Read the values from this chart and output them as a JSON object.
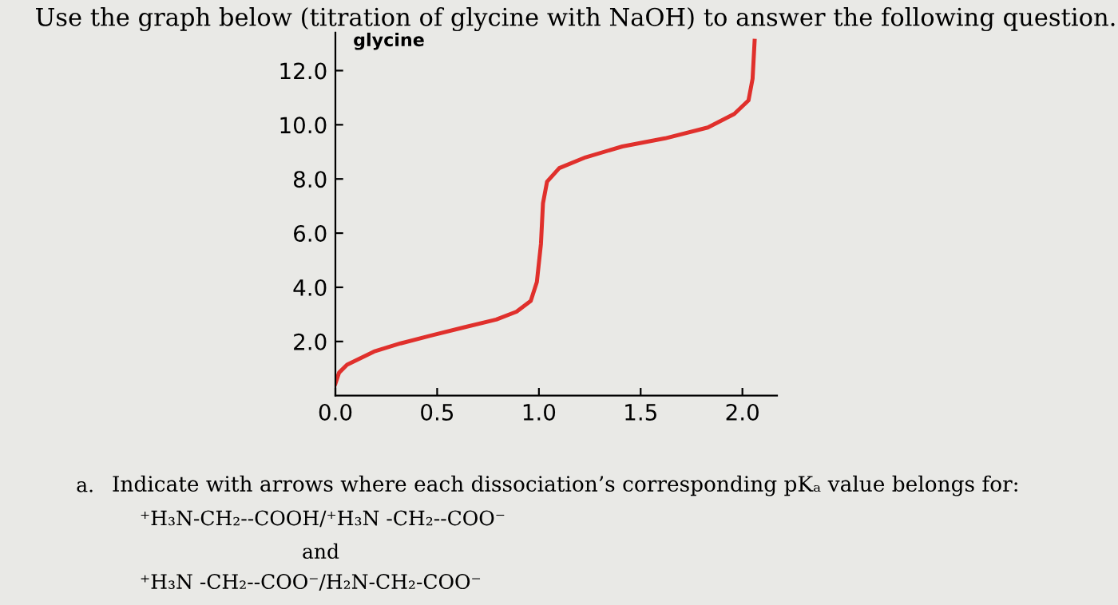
{
  "chart_data": {
    "type": "line",
    "title": "Use the graph below (titration of glycine with NaOH) to answer the following question.",
    "subtitle": "glycine",
    "x": [
      0,
      0.018,
      0.057,
      0.19,
      0.32,
      0.47,
      0.63,
      0.79,
      0.89,
      0.96,
      0.99,
      1.01,
      1.02,
      1.04,
      1.1,
      1.23,
      1.41,
      1.62,
      1.83,
      1.96,
      2.03,
      2.05,
      2.06
    ],
    "series": [
      {
        "color": "#e0302c",
        "values": [
          0.45,
          0.85,
          1.14,
          1.63,
          1.93,
          2.22,
          2.52,
          2.81,
          3.1,
          3.5,
          4.2,
          5.6,
          7.1,
          7.9,
          8.4,
          8.8,
          9.2,
          9.5,
          9.9,
          10.4,
          10.9,
          11.7,
          13.1
        ]
      }
    ],
    "xlim": [
      0,
      2.17
    ],
    "ylim": [
      0,
      13.4
    ],
    "xticks": [
      {
        "value": 0,
        "label": "0.0"
      },
      {
        "value": 0.5,
        "label": "0.5"
      },
      {
        "value": 1,
        "label": "1.0"
      },
      {
        "value": 1.5,
        "label": "1.5"
      },
      {
        "value": 2,
        "label": "2.0"
      }
    ],
    "yticks": [
      {
        "value": 2,
        "label": "2.0"
      },
      {
        "value": 4,
        "label": "4.0"
      },
      {
        "value": 6,
        "label": "6.0"
      },
      {
        "value": 8,
        "label": "8.0"
      },
      {
        "value": 10,
        "label": "10.0"
      },
      {
        "value": 12,
        "label": "12.0"
      }
    ],
    "grid": false,
    "marker": "none",
    "line_style": "solid",
    "annotations": [
      "a.",
      "Indicate with arrows where each dissociation’s corresponding pKₐ value belongs for:",
      "⁺H₃N-CH₂--COOH/⁺H₃N -CH₂--COO⁻",
      "and",
      "⁺H₃N -CH₂--COO⁻/H₂N-CH₂-COO⁻"
    ]
  }
}
